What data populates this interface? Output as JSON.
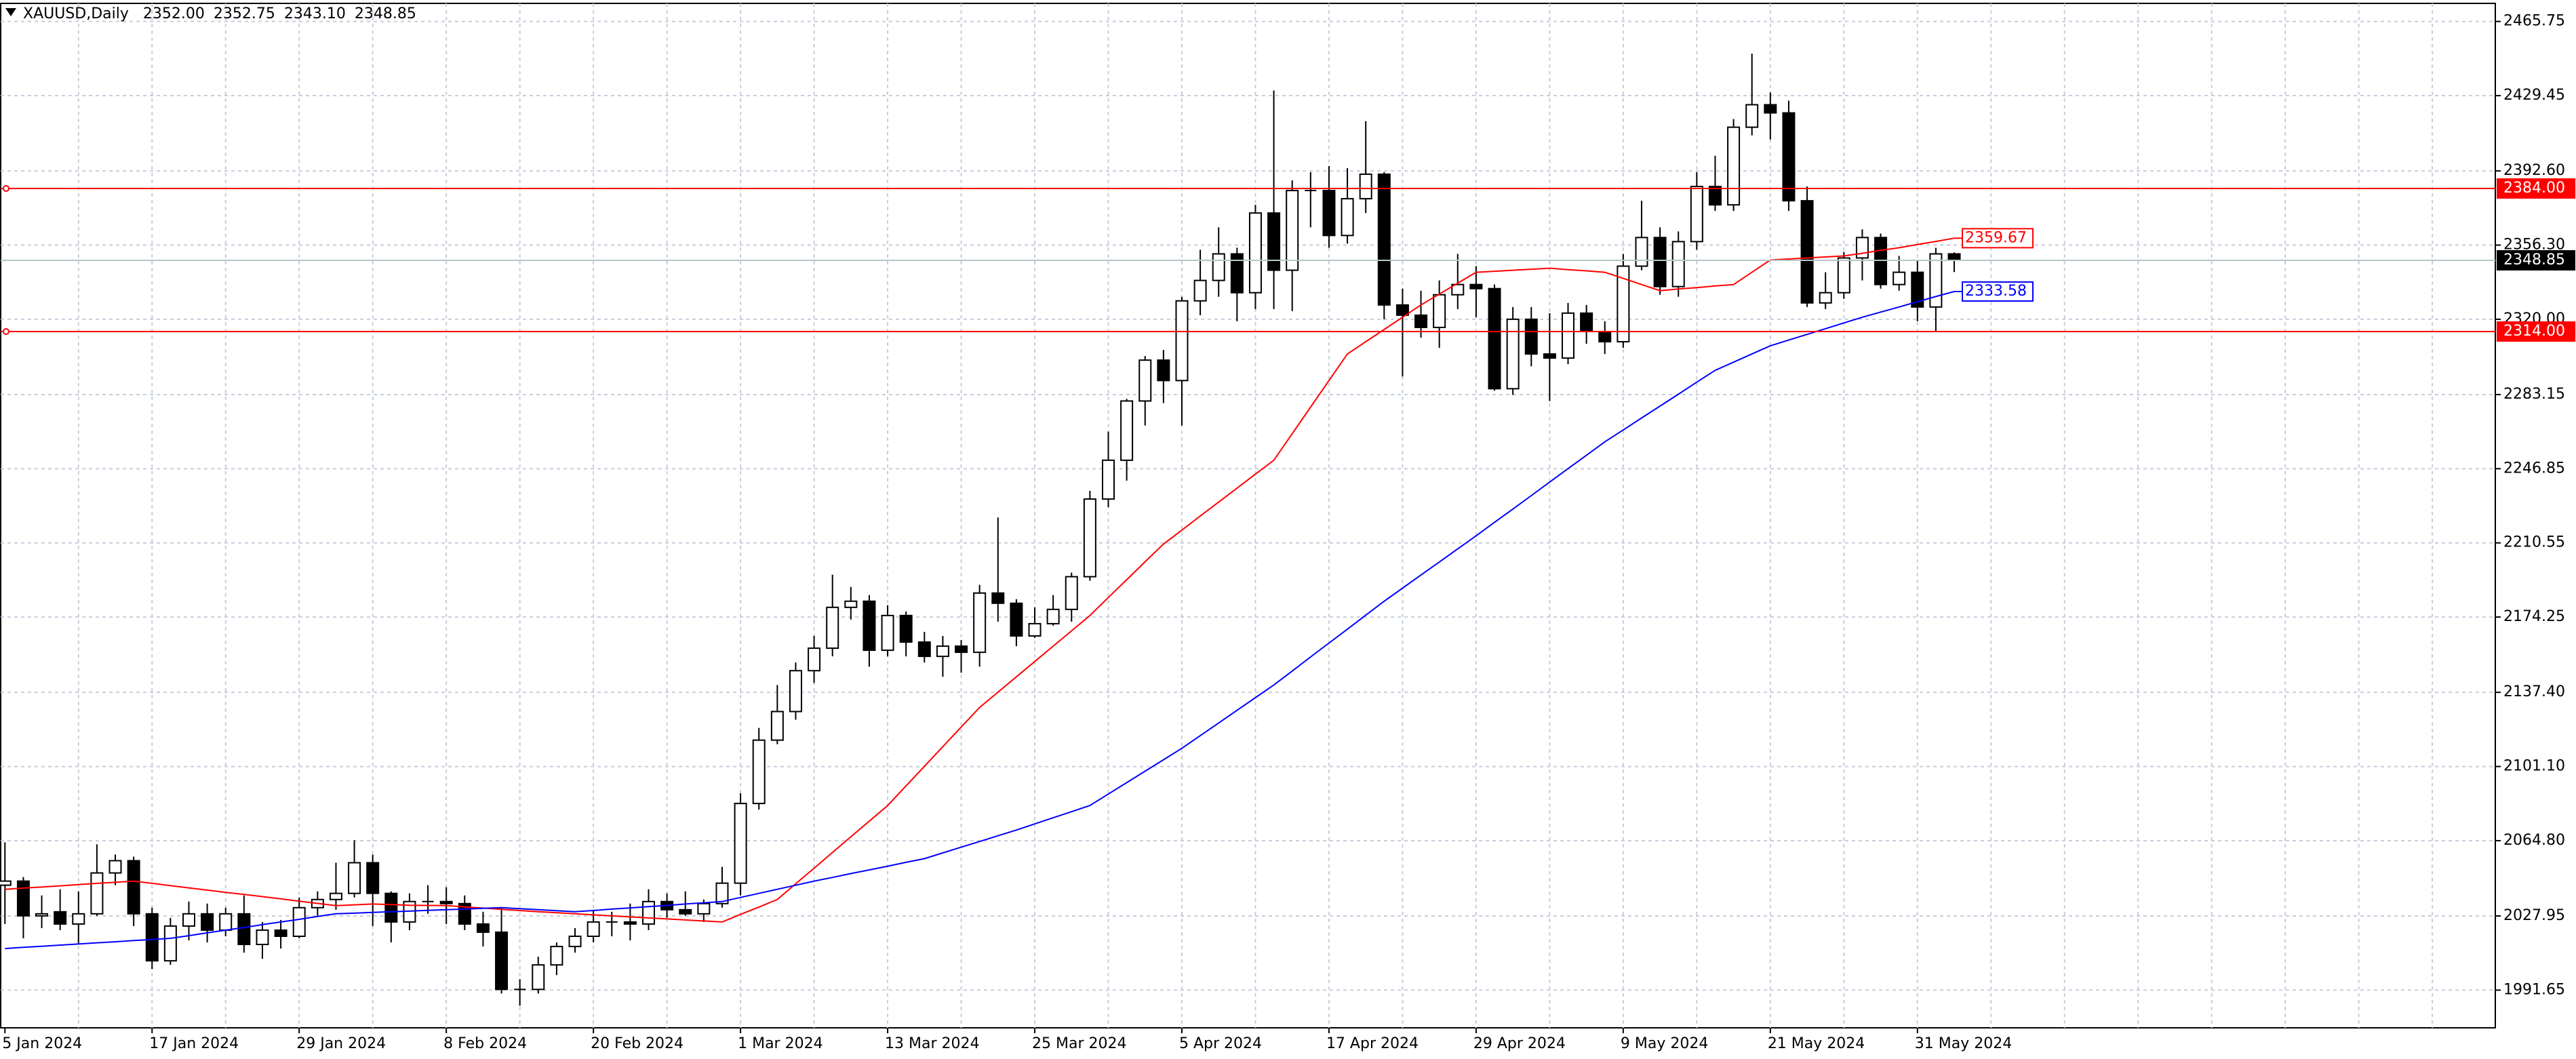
{
  "chart_data": {
    "type": "candlestick",
    "title": "XAUUSD,Daily",
    "header_values": [
      "2352.00",
      "2352.75",
      "2343.10",
      "2348.85"
    ],
    "categories": [
      "5 Jan 2024",
      null,
      null,
      null,
      null,
      null,
      null,
      null,
      "17 Jan 2024",
      null,
      null,
      null,
      null,
      null,
      null,
      null,
      "29 Jan 2024",
      null,
      null,
      null,
      null,
      null,
      null,
      null,
      "8 Feb 2024",
      null,
      null,
      null,
      null,
      null,
      null,
      null,
      "20 Feb 2024",
      null,
      null,
      null,
      null,
      null,
      null,
      null,
      "1 Mar 2024",
      null,
      null,
      null,
      null,
      null,
      null,
      null,
      "13 Mar 2024",
      null,
      null,
      null,
      null,
      null,
      null,
      null,
      "25 Mar 2024",
      null,
      null,
      null,
      null,
      null,
      null,
      null,
      "5 Apr 2024",
      null,
      null,
      null,
      null,
      null,
      null,
      null,
      "17 Apr 2024",
      null,
      null,
      null,
      null,
      null,
      null,
      null,
      "29 Apr 2024",
      null,
      null,
      null,
      null,
      null,
      null,
      null,
      "9 May 2024",
      null,
      null,
      null,
      null,
      null,
      null,
      null,
      "21 May 2024",
      null,
      null,
      null,
      null,
      null,
      null,
      null,
      "31 May 2024",
      null,
      null
    ],
    "open": [
      2043,
      2045,
      2028,
      2030,
      2024,
      2029,
      2049,
      2055,
      2029,
      2006,
      2023,
      2029,
      2021,
      2029,
      2014,
      2021,
      2018,
      2032,
      2036,
      2039,
      2054,
      2039,
      2025,
      2035,
      2035,
      2034,
      2024,
      2020,
      1992,
      1992,
      2004,
      2013,
      2018,
      2025,
      2025,
      2024,
      2035,
      2031,
      2029,
      2034,
      2044,
      2083,
      2114,
      2128,
      2148,
      2159,
      2179,
      2182,
      2158,
      2175,
      2162,
      2155,
      2160,
      2157,
      2186,
      2181,
      2165,
      2171,
      2178,
      2194,
      2232,
      2251,
      2280,
      2300,
      2290,
      2329,
      2339,
      2352,
      2333,
      2372,
      2344,
      2383,
      2383,
      2361,
      2379,
      2391,
      2327,
      2322,
      2316,
      2332,
      2337,
      2335,
      2286,
      2320,
      2303,
      2301,
      2323,
      2314,
      2309,
      2346,
      2360,
      2336,
      2358,
      2385,
      2376,
      2414,
      2425,
      2421,
      2378,
      2328,
      2333,
      2350,
      2360,
      2337,
      2343,
      2326,
      2352.0
    ],
    "high": [
      2064,
      2047,
      2038,
      2041,
      2040,
      2063,
      2058,
      2057,
      2032,
      2027,
      2035,
      2034,
      2032,
      2038,
      2025,
      2026,
      2037,
      2040,
      2054,
      2065,
      2058,
      2040,
      2039,
      2043,
      2042,
      2038,
      2030,
      2032,
      1997,
      2008,
      2015,
      2022,
      2031,
      2030,
      2034,
      2041,
      2039,
      2040,
      2036,
      2052,
      2088,
      2120,
      2141,
      2152,
      2165,
      2195,
      2189,
      2185,
      2180,
      2177,
      2167,
      2165,
      2163,
      2190,
      2223,
      2183,
      2179,
      2185,
      2196,
      2236,
      2265,
      2281,
      2302,
      2305,
      2331,
      2354,
      2365,
      2355,
      2376,
      2432,
      2388,
      2392,
      2395,
      2394,
      2417,
      2392,
      2335,
      2334,
      2339,
      2352,
      2346,
      2337,
      2326,
      2326,
      2323,
      2328,
      2327,
      2319,
      2352,
      2378,
      2365,
      2363,
      2392,
      2400,
      2418,
      2450,
      2431,
      2427,
      2385,
      2343,
      2353,
      2364,
      2362,
      2351,
      2349,
      2355,
      2352.75
    ],
    "low": [
      2024,
      2017,
      2022,
      2021,
      2014,
      2028,
      2043,
      2023,
      2002,
      2004,
      2016,
      2015,
      2018,
      2010,
      2007,
      2012,
      2017,
      2028,
      2031,
      2037,
      2023,
      2015,
      2021,
      2029,
      2024,
      2021,
      2013,
      1990,
      1984,
      1990,
      1999,
      2010,
      2015,
      2018,
      2016,
      2021,
      2027,
      2028,
      2025,
      2032,
      2038,
      2080,
      2112,
      2124,
      2142,
      2155,
      2173,
      2150,
      2155,
      2155,
      2152,
      2145,
      2147,
      2150,
      2172,
      2160,
      2164,
      2170,
      2172,
      2192,
      2228,
      2241,
      2268,
      2279,
      2268,
      2322,
      2331,
      2319,
      2325,
      2325,
      2324,
      2365,
      2355,
      2357,
      2372,
      2320,
      2292,
      2311,
      2306,
      2325,
      2321,
      2285,
      2283,
      2297,
      2280,
      2298,
      2308,
      2303,
      2306,
      2344,
      2332,
      2331,
      2354,
      2373,
      2373,
      2410,
      2408,
      2373,
      2326,
      2325,
      2330,
      2339,
      2335,
      2334,
      2319,
      2314,
      2343.1
    ],
    "close": [
      2045,
      2028,
      2029,
      2024,
      2029,
      2049,
      2055,
      2029,
      2006,
      2023,
      2029,
      2021,
      2029,
      2014,
      2021,
      2018,
      2032,
      2036,
      2039,
      2054,
      2039,
      2025,
      2035,
      2035,
      2034,
      2024,
      2020,
      1992,
      1992,
      2004,
      2013,
      2018,
      2025,
      2025,
      2024,
      2035,
      2031,
      2029,
      2034,
      2044,
      2083,
      2114,
      2128,
      2148,
      2159,
      2179,
      2182,
      2158,
      2175,
      2162,
      2155,
      2160,
      2157,
      2186,
      2181,
      2165,
      2171,
      2178,
      2194,
      2232,
      2251,
      2280,
      2300,
      2290,
      2329,
      2339,
      2352,
      2333,
      2372,
      2344,
      2383,
      2383,
      2361,
      2379,
      2391,
      2327,
      2322,
      2316,
      2332,
      2337,
      2335,
      2286,
      2320,
      2303,
      2301,
      2323,
      2314,
      2309,
      2346,
      2360,
      2336,
      2358,
      2385,
      2376,
      2414,
      2425,
      2421,
      2378,
      2328,
      2333,
      2350,
      2360,
      2337,
      2343,
      2326,
      2352,
      2348.85
    ],
    "bull_color": "#ffffff",
    "bear_color": "#000000",
    "lines": [
      {
        "color": "#ff0000",
        "values": [
          2041,
          2041.6,
          2042.1,
          2042.7,
          2043.3,
          2043.9,
          2044.4,
          2045,
          2043.9,
          2042.8,
          2041.7,
          2040.6,
          2039.5,
          2038.5,
          2037.4,
          2036.3,
          2035.2,
          2034.1,
          2033,
          2033.4,
          2033.8,
          2033.5,
          2033.2,
          2033.1,
          2033,
          2032.4,
          2031.8,
          2031.2,
          2030.6,
          2030,
          2029.5,
          2029,
          2028.5,
          2028,
          2027.5,
          2027,
          2026.5,
          2026,
          2025.5,
          2025,
          2028.7,
          2032.3,
          2036,
          2043.7,
          2051.3,
          2059,
          2066.7,
          2074.3,
          2082,
          2091.6,
          2101.2,
          2110.8,
          2120.4,
          2130,
          2137.5,
          2145,
          2152.5,
          2160,
          2167.5,
          2175,
          2183.8,
          2192.5,
          2201.3,
          2210,
          2216.8,
          2223.7,
          2230.5,
          2237.3,
          2244.2,
          2251,
          2264,
          2277,
          2290,
          2303,
          2309,
          2315,
          2321,
          2327,
          2332.3,
          2337.7,
          2343,
          2343.5,
          2344,
          2344.5,
          2345,
          2344.3,
          2343.7,
          2343,
          2340,
          2337,
          2334,
          2334.8,
          2335.5,
          2336.3,
          2337,
          2343,
          2349,
          2349.5,
          2350,
          2350.5,
          2351,
          2352.3,
          2353.7,
          2355,
          2356.6,
          2358.1,
          2359.67
        ]
      },
      {
        "color": "#0000ff",
        "values": [
          2012,
          2012.6,
          2013.1,
          2013.7,
          2014.2,
          2014.8,
          2015.3,
          2015.9,
          2016.4,
          2017,
          2018.3,
          2019.7,
          2021,
          2022.3,
          2023.7,
          2025,
          2026.3,
          2027.7,
          2029,
          2029.3,
          2029.7,
          2030,
          2030.3,
          2030.7,
          2031,
          2031.3,
          2031.7,
          2032,
          2031.5,
          2031,
          2030.5,
          2030,
          2030.6,
          2031.3,
          2031.9,
          2032.5,
          2033.1,
          2033.8,
          2034.4,
          2035,
          2037,
          2039,
          2041,
          2043,
          2045,
          2046.8,
          2048.7,
          2050.5,
          2052.3,
          2054.2,
          2056,
          2058.8,
          2061.6,
          2064.4,
          2067.2,
          2070,
          2073,
          2076,
          2079,
          2082,
          2087.6,
          2093.2,
          2098.8,
          2104.4,
          2110,
          2116.2,
          2122.4,
          2128.6,
          2134.8,
          2141,
          2147.8,
          2154.7,
          2161.5,
          2168.3,
          2175.2,
          2182,
          2188.4,
          2194.8,
          2201.2,
          2207.6,
          2214,
          2220.6,
          2227.1,
          2233.7,
          2240.3,
          2246.9,
          2253.4,
          2260,
          2265.8,
          2271.7,
          2277.5,
          2283.3,
          2289.2,
          2295,
          2299,
          2303,
          2307,
          2309.8,
          2312.6,
          2315.4,
          2318.2,
          2321,
          2323.5,
          2326,
          2328.6,
          2331.1,
          2333.58
        ]
      }
    ],
    "hlines": [
      {
        "value": 2384,
        "label": "2384.00",
        "color": "#ff0000"
      },
      {
        "value": 2314,
        "label": "2314.00",
        "color": "#ff0000"
      }
    ],
    "last_price": 2348.85,
    "ylim": [
      1973.2,
      2474.6
    ],
    "yticks": [
      2465.75,
      2429.45,
      {
        "value": 2392.6,
        "label": "2392.60"
      },
      {
        "value": 2356.3,
        "label": "2356.30"
      },
      {
        "value": 2320,
        "label": "2320.00"
      },
      2283.15,
      2246.85,
      2210.55,
      2174.25,
      {
        "value": 2137.4,
        "label": "2137.40"
      },
      {
        "value": 2101.1,
        "label": "2101.10"
      },
      {
        "value": 2064.8,
        "label": "2064.80"
      },
      2027.95,
      1991.65
    ],
    "grid": true
  }
}
